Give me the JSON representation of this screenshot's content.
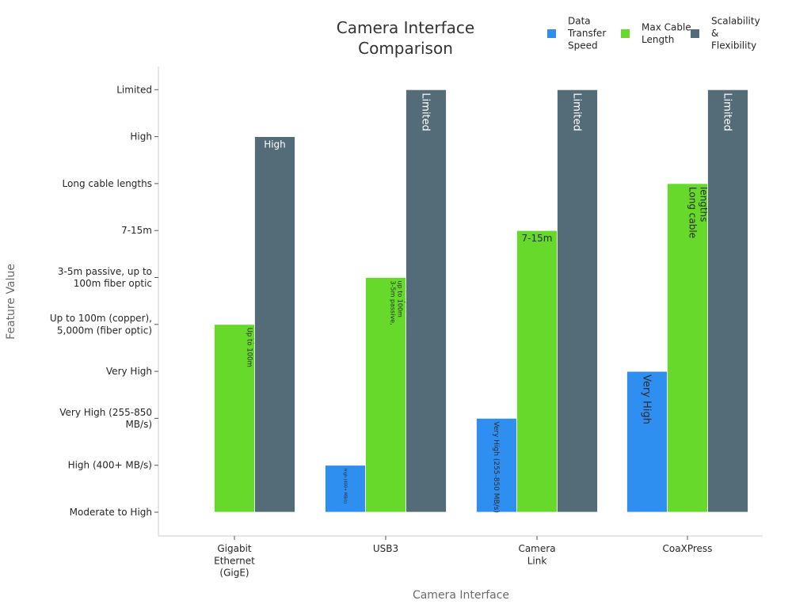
{
  "chart_data": {
    "type": "bar",
    "title": "Camera Interface Comparison",
    "xlabel": "Camera Interface",
    "ylabel": "Feature Value",
    "categories": [
      "Gigabit Ethernet (GigE)",
      "USB3",
      "Camera Link",
      "CoaXPress"
    ],
    "y_ticks": [
      "Moderate to High",
      "High (400+ MB/s)",
      "Very High (255-850 MB/s)",
      "Very High",
      "Up to 100m (copper), 5,000m (fiber optic)",
      "3-5m passive, up to 100m fiber optic",
      "7-15m",
      "Long cable lengths",
      "High",
      "Limited"
    ],
    "series": [
      {
        "name": "Data Transfer Speed",
        "color": "#2f8ff0",
        "values": [
          "Moderate to High",
          "High (400+ MB/s)",
          "Very High (255-850 MB/s)",
          "Very High"
        ]
      },
      {
        "name": "Max Cable Length",
        "color": "#66d92a",
        "values": [
          "Up to 100m (copper), 5,000m (fiber optic)",
          "3-5m passive, up to 100m fiber optic",
          "7-15m",
          "Long cable lengths"
        ]
      },
      {
        "name": "Scalability & Flexibility",
        "color": "#546c78",
        "values": [
          "High",
          "Limited",
          "Limited",
          "Limited"
        ]
      }
    ],
    "grid": false,
    "legend_position": "top-right"
  }
}
